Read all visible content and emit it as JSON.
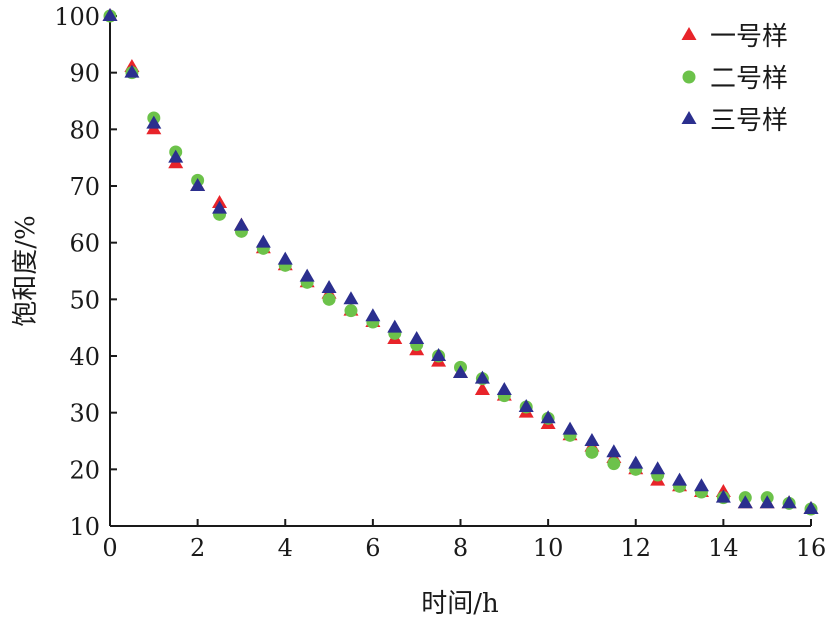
{
  "chart_data": {
    "type": "scatter",
    "xlabel": "时间/h",
    "ylabel": "饱和度/%",
    "xlim": [
      0,
      16
    ],
    "ylim": [
      10,
      100
    ],
    "xticks": [
      0,
      2,
      4,
      6,
      8,
      10,
      12,
      14,
      16
    ],
    "yticks": [
      10,
      20,
      30,
      40,
      50,
      60,
      70,
      80,
      90,
      100
    ],
    "grid": false,
    "legend": "top-right",
    "series": [
      {
        "name": "一号样",
        "marker": "triangle",
        "color": "#e8242a",
        "x": [
          0,
          0.5,
          1,
          1.5,
          2,
          2.5,
          3,
          3.5,
          4,
          4.5,
          5,
          5.5,
          6,
          6.5,
          7,
          7.5,
          8,
          8.5,
          9,
          9.5,
          10,
          10.5,
          11,
          11.5,
          12,
          12.5,
          13,
          13.5,
          14,
          14.5,
          15,
          15.5,
          16
        ],
        "y": [
          100,
          91,
          80,
          74,
          70,
          67,
          63,
          59,
          56,
          53,
          51,
          48,
          46,
          43,
          41,
          39,
          37,
          34,
          33,
          30,
          28,
          26,
          24,
          22,
          20,
          18,
          17,
          16,
          16,
          14,
          14,
          14,
          13
        ]
      },
      {
        "name": "二号样",
        "marker": "circle",
        "color": "#6cc24a",
        "x": [
          0,
          0.5,
          1,
          1.5,
          2,
          2.5,
          3,
          3.5,
          4,
          4.5,
          5,
          5.5,
          6,
          6.5,
          7,
          7.5,
          8,
          8.5,
          9,
          9.5,
          10,
          10.5,
          11,
          11.5,
          12,
          12.5,
          13,
          13.5,
          14,
          14.5,
          15,
          15.5,
          16
        ],
        "y": [
          100,
          90,
          82,
          76,
          71,
          65,
          62,
          59,
          56,
          53,
          50,
          48,
          46,
          44,
          42,
          40,
          38,
          36,
          33,
          31,
          29,
          26,
          23,
          21,
          20,
          19,
          17,
          16,
          15,
          15,
          15,
          14,
          13
        ]
      },
      {
        "name": "三号样",
        "marker": "triangle",
        "color": "#2b2f8e",
        "x": [
          0,
          0.5,
          1,
          1.5,
          2,
          2.5,
          3,
          3.5,
          4,
          4.5,
          5,
          5.5,
          6,
          6.5,
          7,
          7.5,
          8,
          8.5,
          9,
          9.5,
          10,
          10.5,
          11,
          11.5,
          12,
          12.5,
          13,
          13.5,
          14,
          14.5,
          15,
          15.5,
          16
        ],
        "y": [
          100,
          90,
          81,
          75,
          70,
          66,
          63,
          60,
          57,
          54,
          52,
          50,
          47,
          45,
          43,
          40,
          37,
          36,
          34,
          31,
          29,
          27,
          25,
          23,
          21,
          20,
          18,
          17,
          15,
          14,
          14,
          14,
          13
        ]
      }
    ]
  }
}
